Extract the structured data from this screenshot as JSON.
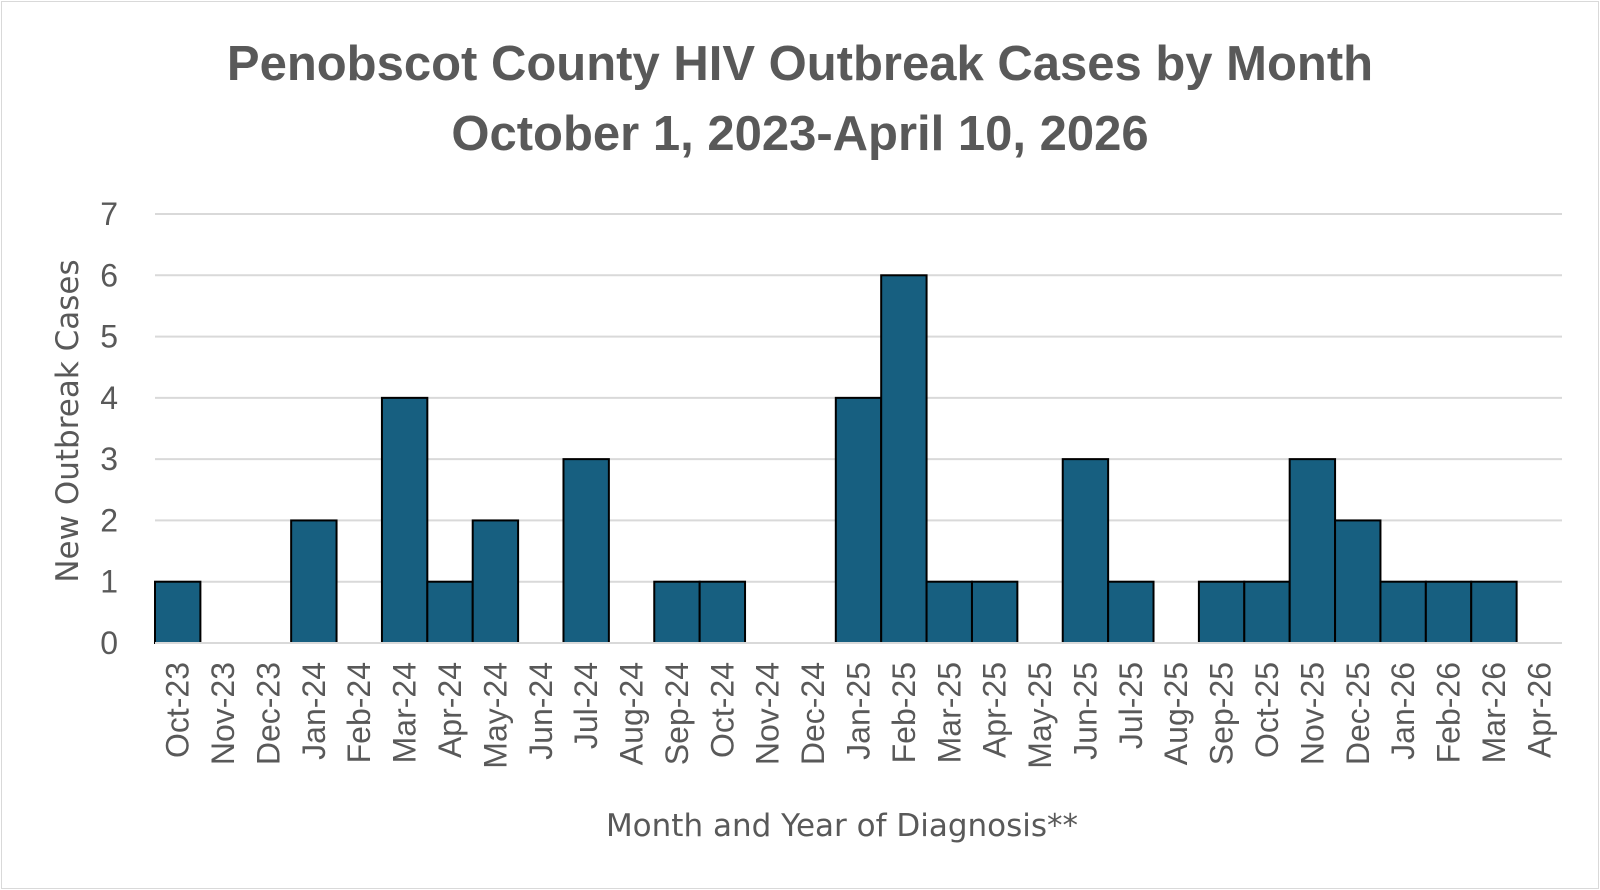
{
  "chart_data": {
    "type": "bar",
    "title": "Penobscot County HIV Outbreak Cases by Month",
    "subtitle": "October 1, 2023-April 10, 2026",
    "xlabel": "Month and Year of Diagnosis**",
    "ylabel": "New Outbreak Cases",
    "ylim": [
      0,
      7
    ],
    "yticks": [
      0,
      1,
      2,
      3,
      4,
      5,
      6,
      7
    ],
    "grid": true,
    "legend": "none",
    "bar_color": "#175f80",
    "bar_border_color": "#000000",
    "gridline_color": "#d9d9d9",
    "text_color": "#595959",
    "categories": [
      "Oct-23",
      "Nov-23",
      "Dec-23",
      "Jan-24",
      "Feb-24",
      "Mar-24",
      "Apr-24",
      "May-24",
      "Jun-24",
      "Jul-24",
      "Aug-24",
      "Sep-24",
      "Oct-24",
      "Nov-24",
      "Dec-24",
      "Jan-25",
      "Feb-25",
      "Mar-25",
      "Apr-25",
      "May-25",
      "Jun-25",
      "Jul-25",
      "Aug-25",
      "Sep-25",
      "Oct-25",
      "Nov-25",
      "Dec-25",
      "Jan-26",
      "Feb-26",
      "Mar-26",
      "Apr-26"
    ],
    "values": [
      1,
      0,
      0,
      2,
      0,
      4,
      1,
      2,
      0,
      3,
      0,
      1,
      1,
      0,
      0,
      4,
      6,
      1,
      1,
      0,
      3,
      1,
      0,
      1,
      1,
      3,
      2,
      1,
      1,
      1,
      0
    ]
  }
}
